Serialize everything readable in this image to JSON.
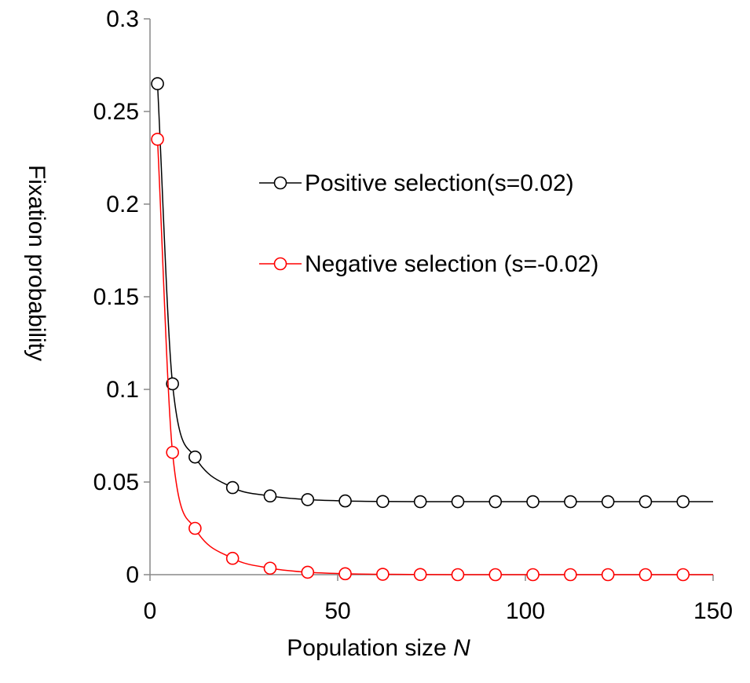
{
  "chart_data": {
    "type": "line",
    "title": "",
    "xlabel_prefix": "Population size ",
    "xlabel_var": "N",
    "ylabel": "Fixation probability",
    "xlim": [
      0,
      150
    ],
    "ylim": [
      0,
      0.3
    ],
    "xticks": [
      "0",
      "50",
      "100",
      "150"
    ],
    "yticks": [
      "0",
      "0.05",
      "0.1",
      "0.15",
      "0.2",
      "0.25",
      "0.3"
    ],
    "grid": false,
    "legend_position": "upper-right",
    "series": [
      {
        "name": "Positive selection(s=0.02)",
        "color": "#000000",
        "marker": "open-circle",
        "x": [
          2,
          6,
          12,
          22,
          32,
          42,
          52,
          62,
          72,
          82,
          92,
          102,
          112,
          122,
          132,
          142
        ],
        "y": [
          0.265,
          0.103,
          0.0635,
          0.047,
          0.0425,
          0.0405,
          0.0398,
          0.0395,
          0.0394,
          0.0394,
          0.0394,
          0.0394,
          0.0394,
          0.0394,
          0.0394,
          0.0394
        ],
        "curve_x_end": 150
      },
      {
        "name": "Negative selection (s=-0.02)",
        "color": "#ff0000",
        "marker": "open-circle",
        "x": [
          2,
          6,
          12,
          22,
          32,
          42,
          52,
          62,
          72,
          82,
          92,
          102,
          112,
          122,
          132,
          142
        ],
        "y": [
          0.235,
          0.066,
          0.025,
          0.0088,
          0.0035,
          0.0013,
          0.0005,
          0.0002,
          0.0001,
          0.0,
          0.0,
          0.0,
          0.0,
          0.0,
          0.0,
          0.0
        ],
        "curve_x_end": 150
      }
    ]
  }
}
